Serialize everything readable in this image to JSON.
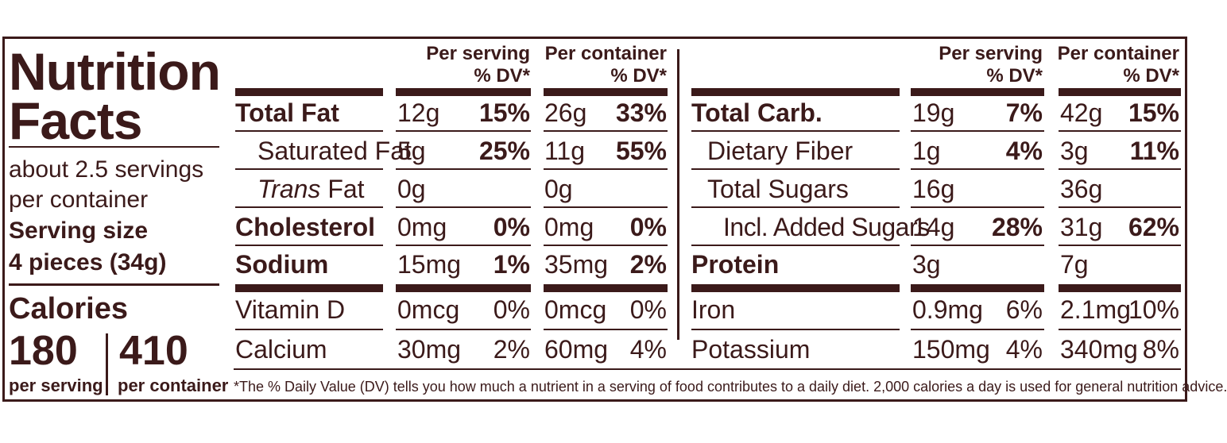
{
  "title": [
    "Nutrition",
    "Facts"
  ],
  "servings": [
    "about 2.5 servings",
    "per container"
  ],
  "serving_size": {
    "label": "Serving size",
    "value": "4 pieces (34g)"
  },
  "calories": {
    "label": "Calories",
    "per_serving": "180",
    "per_serving_label": "per serving",
    "per_container": "410",
    "per_container_label": "per container"
  },
  "headers": {
    "per_serving": [
      "Per serving",
      "% DV*"
    ],
    "per_container": [
      "Per container",
      "% DV*"
    ]
  },
  "left_rows": [
    {
      "label": "Total Fat",
      "serving_amount": "12g",
      "serving_dv": "15%",
      "container_amount": "26g",
      "container_dv": "33%"
    },
    {
      "label": "Saturated Fat",
      "serving_amount": "5g",
      "serving_dv": "25%",
      "container_amount": "11g",
      "container_dv": "55%"
    },
    {
      "label_italic": "Trans",
      "label": " Fat",
      "serving_amount": "0g",
      "serving_dv": "",
      "container_amount": "0g",
      "container_dv": ""
    },
    {
      "label": "Cholesterol",
      "serving_amount": "0mg",
      "serving_dv": "0%",
      "container_amount": "0mg",
      "container_dv": "0%"
    },
    {
      "label": "Sodium",
      "serving_amount": "15mg",
      "serving_dv": "1%",
      "container_amount": "35mg",
      "container_dv": "2%"
    },
    {
      "label": "Vitamin D",
      "serving_amount": "0mcg",
      "serving_dv": "0%",
      "container_amount": "0mcg",
      "container_dv": "0%"
    },
    {
      "label": "Calcium",
      "serving_amount": "30mg",
      "serving_dv": "2%",
      "container_amount": "60mg",
      "container_dv": "4%"
    }
  ],
  "right_rows": [
    {
      "label": "Total Carb.",
      "serving_amount": "19g",
      "serving_dv": "7%",
      "container_amount": "42g",
      "container_dv": "15%"
    },
    {
      "label": "Dietary Fiber",
      "serving_amount": "1g",
      "serving_dv": "4%",
      "container_amount": "3g",
      "container_dv": "11%"
    },
    {
      "label": "Total Sugars",
      "serving_amount": "16g",
      "serving_dv": "",
      "container_amount": "36g",
      "container_dv": ""
    },
    {
      "label": "Incl. Added Sugars",
      "serving_amount": "14g",
      "serving_dv": "28%",
      "container_amount": "31g",
      "container_dv": "62%"
    },
    {
      "label": "Protein",
      "serving_amount": "3g",
      "serving_dv": "",
      "container_amount": "7g",
      "container_dv": ""
    },
    {
      "label": "Iron",
      "serving_amount": "0.9mg",
      "serving_dv": "6%",
      "container_amount": "2.1mg",
      "container_dv": "10%"
    },
    {
      "label": "Potassium",
      "serving_amount": "150mg",
      "serving_dv": "4%",
      "container_amount": "340mg",
      "container_dv": "8%"
    }
  ],
  "footnote": "*The % Daily Value (DV) tells you how much a nutrient in a serving of food contributes to a daily diet. 2,000 calories a day is used for general nutrition advice."
}
